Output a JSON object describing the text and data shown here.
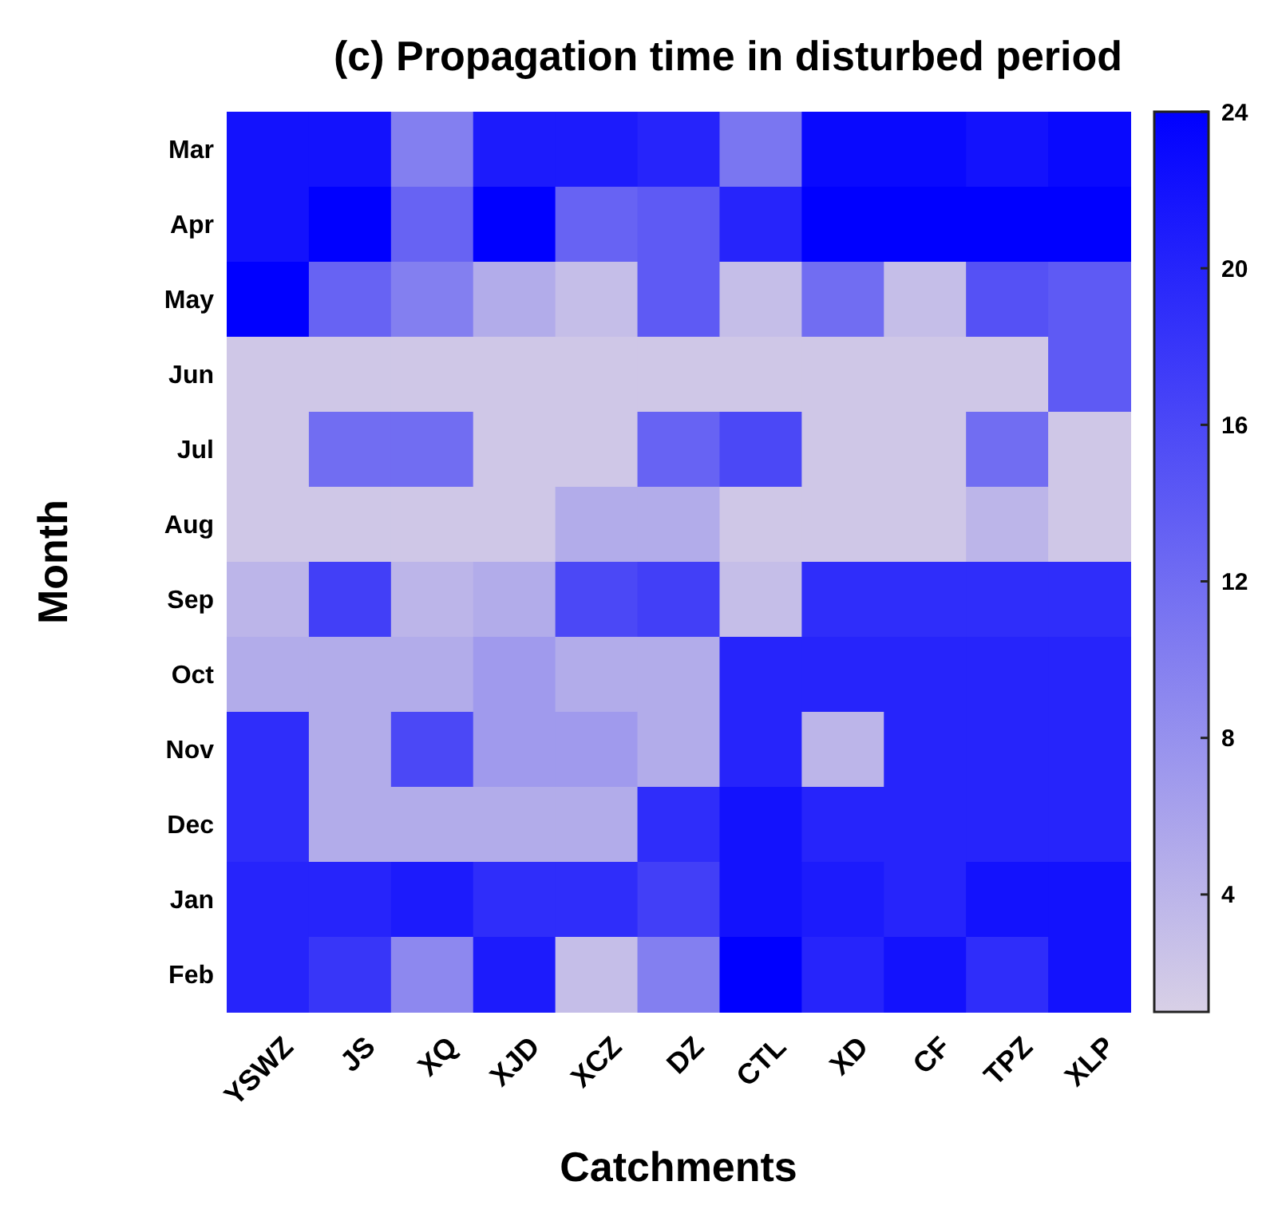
{
  "chart_data": {
    "type": "heatmap",
    "title": "(c) Propagation time in disturbed period",
    "xlabel": "Catchments",
    "ylabel": "Month",
    "categories": [
      "YSWZ",
      "JS",
      "XQ",
      "XJD",
      "XCZ",
      "DZ",
      "CTL",
      "XD",
      "CF",
      "TPZ",
      "XLP"
    ],
    "y_categories": [
      "Mar",
      "Apr",
      "May",
      "Jun",
      "Jul",
      "Aug",
      "Sep",
      "Oct",
      "Nov",
      "Dec",
      "Jan",
      "Feb"
    ],
    "cells": [
      [
        22,
        22,
        10,
        21,
        21,
        20,
        11,
        23,
        23,
        22,
        23
      ],
      [
        22,
        24,
        13,
        24,
        13,
        14,
        20,
        24,
        24,
        24,
        24
      ],
      [
        24,
        13,
        10,
        5,
        3,
        14,
        3,
        12,
        3,
        15,
        14
      ],
      [
        2,
        2,
        2,
        2,
        2,
        2,
        2,
        2,
        2,
        2,
        14
      ],
      [
        2,
        12,
        12,
        2,
        2,
        13,
        16,
        2,
        2,
        12,
        2
      ],
      [
        2,
        2,
        2,
        2,
        5,
        5,
        2,
        2,
        2,
        4,
        2
      ],
      [
        4,
        17,
        4,
        5,
        16,
        17,
        3,
        19,
        19,
        19,
        19
      ],
      [
        5,
        5,
        5,
        7,
        5,
        5,
        20,
        20,
        20,
        20,
        20
      ],
      [
        19,
        5,
        16,
        7,
        7,
        5,
        20,
        4,
        20,
        20,
        20
      ],
      [
        19,
        5,
        5,
        5,
        5,
        19,
        22,
        20,
        20,
        20,
        20
      ],
      [
        20,
        20,
        21,
        19,
        19,
        17,
        22,
        21,
        20,
        22,
        22
      ],
      [
        20,
        18,
        9,
        21,
        3,
        10,
        24,
        20,
        22,
        19,
        22
      ]
    ],
    "clim": [
      1,
      24
    ],
    "cticks": [
      4,
      8,
      12,
      16,
      20,
      24
    ],
    "colors": [
      "#d8d0e6",
      "#0000ff"
    ]
  }
}
